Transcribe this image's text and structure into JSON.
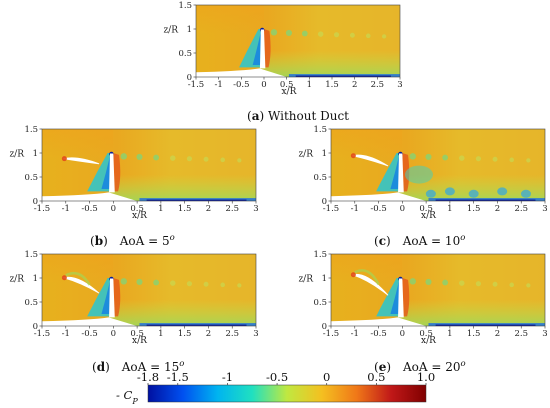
{
  "chart_data": {
    "type": "heatmap",
    "quantity_label": "- C",
    "quantity_sub": "P",
    "colorbar": {
      "range": [
        -1.8,
        1.0
      ],
      "ticks": [
        "-1.8",
        "-1.5",
        "-1",
        "-0.5",
        "0",
        "0.5",
        "1.0"
      ],
      "tick_values": [
        -1.8,
        -1.5,
        -1,
        -0.5,
        0,
        0.5,
        1.0
      ],
      "colors": [
        "#0010a0",
        "#0050f0",
        "#00b4f0",
        "#20e0c0",
        "#c0e840",
        "#f4c020",
        "#f07818",
        "#c01818",
        "#800000"
      ]
    },
    "panels": [
      {
        "id": "a",
        "cap_prefix": "(",
        "cap_letter": "a",
        "cap_suffix": ")",
        "cap_text": " Without Duct",
        "aoa": null,
        "xlabel": "x/R",
        "ylabel": "z/R",
        "xlim": [
          -1.5,
          3
        ],
        "ylim": [
          0,
          1.5
        ],
        "xticks": [
          "-1.5",
          "-1",
          "-0.5",
          "0",
          "0.5",
          "1",
          "1.5",
          "2",
          "2.5",
          "3"
        ],
        "yticks": [
          "0",
          "0.5",
          "1",
          "1.5"
        ]
      },
      {
        "id": "b",
        "cap_prefix": "(",
        "cap_letter": "b",
        "cap_suffix": ")",
        "cap_text": "AoA = 5",
        "cap_sup": "o",
        "aoa": 5,
        "xlabel": "x/R",
        "ylabel": "z/R",
        "xlim": [
          -1.5,
          3
        ],
        "ylim": [
          0,
          1.5
        ],
        "xticks": [
          "-1.5",
          "-1",
          "-0.5",
          "0",
          "0.5",
          "1",
          "1.5",
          "2",
          "2.5",
          "3"
        ],
        "yticks": [
          "0",
          "0.5",
          "1",
          "1.5"
        ]
      },
      {
        "id": "c",
        "cap_prefix": "(",
        "cap_letter": "c",
        "cap_suffix": ")",
        "cap_text": "AoA = 10",
        "cap_sup": "o",
        "aoa": 10,
        "xlabel": "x/R",
        "ylabel": "z/R",
        "xlim": [
          -1.5,
          3
        ],
        "ylim": [
          0,
          1.5
        ],
        "xticks": [
          "-1.5",
          "-1",
          "-0.5",
          "0",
          "0.5",
          "1",
          "1.5",
          "2",
          "2.5",
          "3"
        ],
        "yticks": [
          "0",
          "0.5",
          "1",
          "1.5"
        ]
      },
      {
        "id": "d",
        "cap_prefix": "(",
        "cap_letter": "d",
        "cap_suffix": ")",
        "cap_text": "AoA = 15",
        "cap_sup": "o",
        "aoa": 15,
        "xlabel": "x/R",
        "ylabel": "z/R",
        "xlim": [
          -1.5,
          3
        ],
        "ylim": [
          0,
          1.5
        ],
        "xticks": [
          "-1.5",
          "-1",
          "-0.5",
          "0",
          "0.5",
          "1",
          "1.5",
          "2",
          "2.5",
          "3"
        ],
        "yticks": [
          "0",
          "0.5",
          "1",
          "1.5"
        ]
      },
      {
        "id": "e",
        "cap_prefix": "(",
        "cap_letter": "e",
        "cap_suffix": ")",
        "cap_text": "AoA = 20",
        "cap_sup": "o",
        "aoa": 20,
        "xlabel": "x/R",
        "ylabel": "z/R",
        "xlim": [
          -1.5,
          3
        ],
        "ylim": [
          0,
          1.5
        ],
        "xticks": [
          "-1.5",
          "-1",
          "-0.5",
          "0",
          "0.5",
          "1",
          "1.5",
          "2",
          "2.5",
          "3"
        ],
        "yticks": [
          "0",
          "0.5",
          "1",
          "1.5"
        ]
      }
    ]
  }
}
